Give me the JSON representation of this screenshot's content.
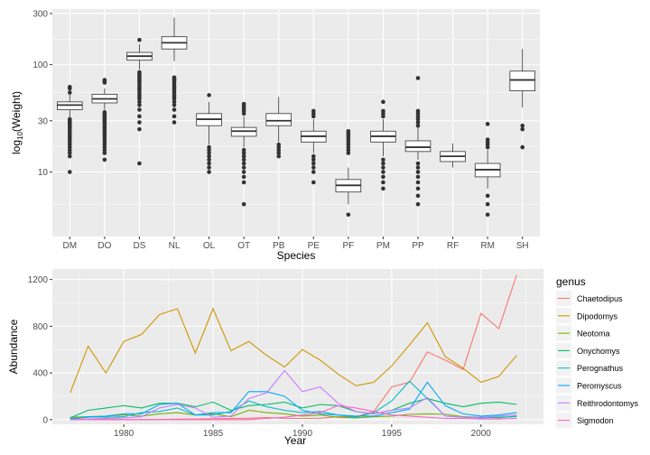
{
  "chart_data": [
    {
      "type": "box",
      "xlabel": "Species",
      "ylabel": "log10(Weight)",
      "ylabel_base": "log",
      "ylabel_sub": "10",
      "ylabel_rest": "(Weight)",
      "yscale": "log10",
      "ylim": [
        2.5,
        330
      ],
      "yticks": [
        10,
        30,
        100,
        300
      ],
      "ytick_labels": [
        "10",
        "30",
        "100",
        "300"
      ],
      "grid": true,
      "categories": [
        "DM",
        "DO",
        "DS",
        "NL",
        "OL",
        "OT",
        "PB",
        "PE",
        "PF",
        "PM",
        "PP",
        "RF",
        "RM",
        "SH"
      ],
      "boxes": [
        {
          "q1": 38,
          "median": 42,
          "q3": 45,
          "whislo": 32,
          "whishi": 53,
          "outliers": [
            10,
            14,
            15,
            16,
            17,
            18,
            19,
            20,
            21,
            22,
            23,
            24,
            25,
            26,
            27,
            28,
            29,
            30,
            31,
            55,
            60,
            62
          ]
        },
        {
          "q1": 44,
          "median": 48,
          "q3": 53,
          "whislo": 38,
          "whishi": 60,
          "outliers": [
            13,
            15,
            16,
            17,
            18,
            19,
            20,
            21,
            22,
            23,
            24,
            25,
            26,
            27,
            28,
            29,
            30,
            31,
            32,
            33,
            34,
            35,
            36,
            68,
            70,
            72
          ]
        },
        {
          "q1": 110,
          "median": 120,
          "q3": 130,
          "whislo": 90,
          "whishi": 155,
          "outliers": [
            12,
            25,
            29,
            33,
            38,
            42,
            45,
            48,
            50,
            52,
            55,
            58,
            60,
            62,
            65,
            68,
            70,
            72,
            74,
            76,
            78,
            80,
            82,
            85,
            170
          ]
        },
        {
          "q1": 140,
          "median": 160,
          "q3": 182,
          "whislo": 108,
          "whishi": 274,
          "outliers": [
            29,
            33,
            38,
            42,
            45,
            48,
            50,
            52,
            55,
            58,
            60,
            62,
            65,
            68,
            70,
            72,
            74,
            76
          ]
        },
        {
          "q1": 27,
          "median": 31,
          "q3": 35,
          "whislo": 18,
          "whishi": 45,
          "outliers": [
            10,
            11,
            12,
            13,
            14,
            15,
            16,
            17,
            52
          ]
        },
        {
          "q1": 21.5,
          "median": 24,
          "q3": 26,
          "whislo": 17,
          "whishi": 33,
          "outliers": [
            5,
            8,
            9,
            10,
            11,
            12,
            13,
            14,
            15,
            16,
            35,
            37,
            39,
            41,
            43
          ]
        },
        {
          "q1": 27,
          "median": 30,
          "q3": 35,
          "whislo": 19,
          "whishi": 50,
          "outliers": [
            14,
            15,
            16,
            17,
            18
          ]
        },
        {
          "q1": 19,
          "median": 21.5,
          "q3": 24,
          "whislo": 15,
          "whishi": 31,
          "outliers": [
            8,
            10,
            11,
            12,
            13,
            14,
            33,
            35,
            37
          ]
        },
        {
          "q1": 6.5,
          "median": 7.5,
          "q3": 8.5,
          "whislo": 5,
          "whishi": 11,
          "outliers": [
            4,
            15,
            16,
            17,
            18,
            19,
            20,
            21,
            22,
            23,
            24
          ]
        },
        {
          "q1": 19,
          "median": 21.5,
          "q3": 24,
          "whislo": 14,
          "whishi": 31,
          "outliers": [
            7,
            8,
            9,
            10,
            11,
            12,
            13,
            33,
            35,
            37,
            45
          ]
        },
        {
          "q1": 15.5,
          "median": 17,
          "q3": 19.5,
          "whislo": 13,
          "whishi": 26,
          "outliers": [
            5,
            6,
            7,
            8,
            9,
            10,
            11,
            12,
            27,
            29,
            31,
            33,
            35,
            37,
            75
          ]
        },
        {
          "q1": 12.5,
          "median": 14,
          "q3": 15.5,
          "whislo": 11,
          "whishi": 18.5,
          "outliers": []
        },
        {
          "q1": 9,
          "median": 10.5,
          "q3": 12,
          "whislo": 7,
          "whishi": 16,
          "outliers": [
            4,
            5,
            6,
            17,
            18,
            19,
            20,
            28
          ]
        },
        {
          "q1": 57,
          "median": 72,
          "q3": 87,
          "whislo": 40,
          "whishi": 140,
          "outliers": [
            17,
            25,
            27
          ]
        }
      ]
    },
    {
      "type": "line",
      "xlabel": "Year",
      "ylabel": "Abundance",
      "xlim": [
        1976,
        2003.5
      ],
      "ylim": [
        -40,
        1290
      ],
      "xticks": [
        1980,
        1985,
        1990,
        1995,
        2000
      ],
      "yticks": [
        0,
        400,
        800,
        1200
      ],
      "grid": true,
      "legend_title": "genus",
      "legend_position": "right",
      "x": [
        1977,
        1978,
        1979,
        1980,
        1981,
        1982,
        1983,
        1984,
        1985,
        1986,
        1987,
        1988,
        1989,
        1990,
        1991,
        1992,
        1993,
        1994,
        1995,
        1996,
        1997,
        1998,
        1999,
        2000,
        2001,
        2002
      ],
      "series": [
        {
          "name": "Chaetodipus",
          "color": "#F8766D",
          "values": [
            3,
            3,
            2,
            1,
            0,
            2,
            4,
            5,
            8,
            10,
            12,
            18,
            12,
            10,
            12,
            25,
            25,
            70,
            280,
            320,
            580,
            510,
            430,
            910,
            780,
            1240
          ]
        },
        {
          "name": "Dipodomys",
          "color": "#CD9600",
          "values": [
            230,
            630,
            400,
            670,
            730,
            900,
            950,
            570,
            950,
            590,
            670,
            550,
            450,
            600,
            510,
            390,
            290,
            320,
            460,
            640,
            830,
            540,
            440,
            320,
            370,
            550
          ]
        },
        {
          "name": "Neotoma",
          "color": "#7CAE00",
          "values": [
            20,
            25,
            30,
            40,
            30,
            50,
            60,
            40,
            50,
            25,
            80,
            60,
            50,
            30,
            40,
            20,
            15,
            25,
            30,
            45,
            50,
            45,
            25,
            20,
            15,
            30
          ]
        },
        {
          "name": "Onychomys",
          "color": "#00BE67",
          "values": [
            15,
            80,
            100,
            120,
            100,
            140,
            140,
            110,
            150,
            80,
            120,
            130,
            150,
            100,
            130,
            120,
            70,
            50,
            80,
            140,
            180,
            140,
            110,
            140,
            150,
            130
          ]
        },
        {
          "name": "Perognathus",
          "color": "#00BFC4",
          "values": [
            0,
            25,
            20,
            25,
            60,
            70,
            100,
            40,
            40,
            70,
            160,
            110,
            80,
            60,
            70,
            40,
            20,
            60,
            160,
            330,
            180,
            30,
            20,
            15,
            20,
            25
          ]
        },
        {
          "name": "Peromyscus",
          "color": "#00A9FF",
          "values": [
            10,
            20,
            30,
            50,
            50,
            130,
            140,
            40,
            60,
            60,
            240,
            240,
            200,
            80,
            50,
            40,
            30,
            30,
            60,
            90,
            320,
            120,
            50,
            30,
            40,
            60
          ]
        },
        {
          "name": "Reithrodontomys",
          "color": "#C77CFF",
          "values": [
            0,
            5,
            10,
            15,
            25,
            100,
            130,
            100,
            20,
            30,
            180,
            230,
            420,
            240,
            280,
            140,
            70,
            50,
            80,
            100,
            190,
            30,
            20,
            20,
            30,
            40
          ]
        },
        {
          "name": "Sigmodon",
          "color": "#FF61CC",
          "values": [
            0,
            0,
            0,
            0,
            0,
            0,
            0,
            0,
            0,
            0,
            0,
            10,
            20,
            40,
            60,
            120,
            100,
            70,
            40,
            30,
            20,
            10,
            10,
            5,
            5,
            10
          ]
        }
      ]
    }
  ]
}
